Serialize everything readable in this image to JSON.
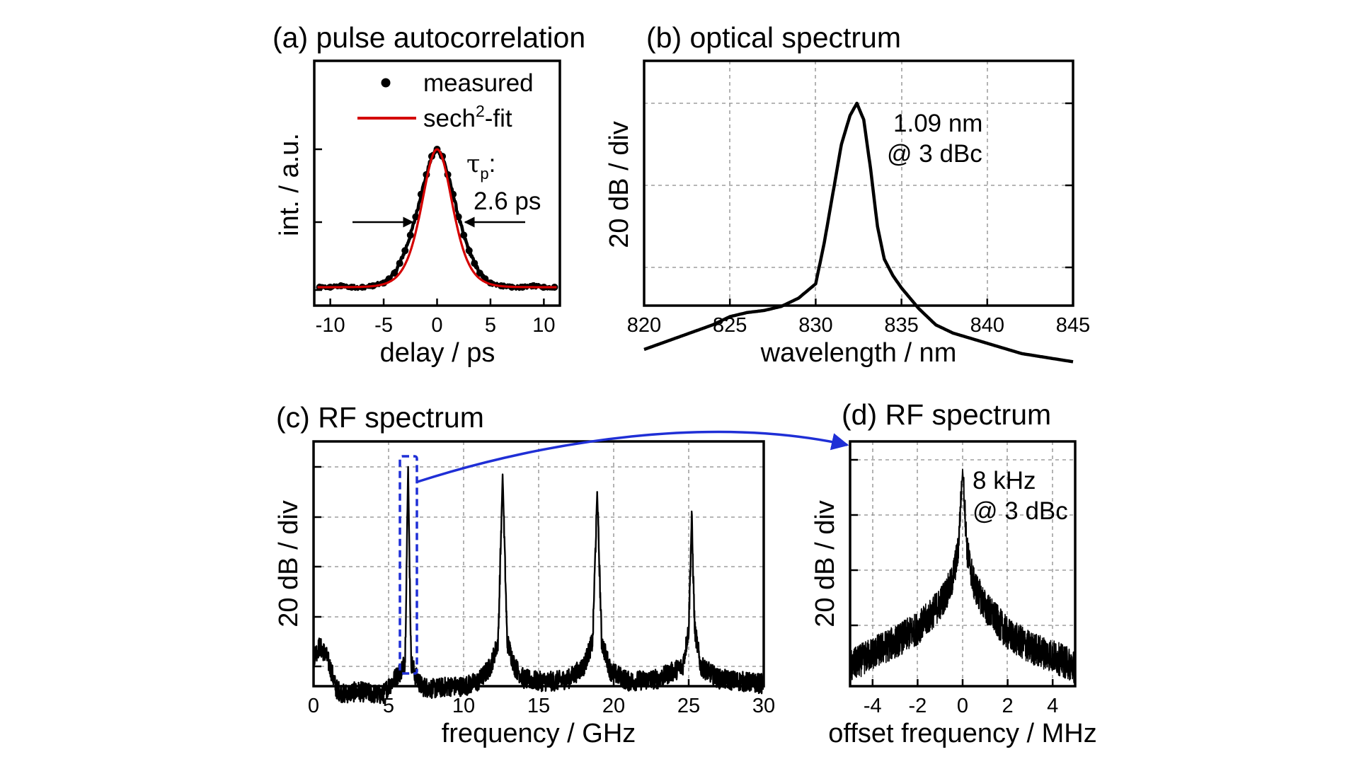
{
  "chart_data": [
    {
      "id": "a",
      "type": "scatter",
      "title": "(a) pulse autocorrelation",
      "xlabel": "delay / ps",
      "ylabel": "int. / a.u.",
      "xlim": [
        -11.5,
        11.5
      ],
      "xticks": [
        "-10",
        "-5",
        "0",
        "5",
        "10"
      ],
      "grid": false,
      "legend_position": "top-right",
      "series": [
        {
          "name": "measured",
          "kind": "points",
          "color": "#000000",
          "x": [
            -11,
            -10,
            -9,
            -8,
            -7,
            -6,
            -5,
            -4.5,
            -4,
            -3.5,
            -3,
            -2.5,
            -2,
            -1.5,
            -1,
            -0.5,
            0,
            0.5,
            1,
            1.5,
            2,
            2.5,
            3,
            3.5,
            4,
            4.5,
            5,
            6,
            7,
            8,
            9,
            10,
            11
          ],
          "y": [
            0.02,
            0.02,
            0.03,
            0.02,
            0.02,
            0.03,
            0.05,
            0.08,
            0.12,
            0.19,
            0.28,
            0.39,
            0.52,
            0.68,
            0.82,
            0.95,
            1.0,
            0.95,
            0.82,
            0.68,
            0.52,
            0.39,
            0.28,
            0.19,
            0.12,
            0.08,
            0.05,
            0.03,
            0.02,
            0.02,
            0.03,
            0.02,
            0.02
          ]
        },
        {
          "name": "sech²-fit",
          "kind": "line",
          "color": "#d40000",
          "tau_ps": 2.6
        }
      ],
      "legend": {
        "measured": "measured",
        "fit_base": "sech",
        "fit_sup": "2",
        "fit_rest": "-fit"
      },
      "annotation": {
        "tau": "τ",
        "sub": "p",
        "colon": ":",
        "value": "2.6 ps"
      }
    },
    {
      "id": "b",
      "type": "line",
      "title": "(b) optical spectrum",
      "xlabel": "wavelength / nm",
      "ylabel": "20 dB / div",
      "xlim": [
        820,
        845
      ],
      "xticks": [
        "820",
        "825",
        "830",
        "835",
        "840",
        "845"
      ],
      "grid": true,
      "series": [
        {
          "color": "#000000",
          "x": [
            820,
            822,
            824,
            825,
            826,
            827,
            828,
            829,
            830,
            830.5,
            831,
            831.5,
            832,
            832.4,
            832.8,
            833.2,
            833.6,
            834,
            834.5,
            835,
            836,
            837,
            838,
            840,
            842,
            845
          ],
          "y": [
            -60,
            -57,
            -54,
            -52,
            -51,
            -50.5,
            -49.5,
            -47.5,
            -44,
            -34,
            -22,
            -10,
            -3,
            0,
            -4,
            -16,
            -30,
            -38,
            -42,
            -45,
            -50,
            -54,
            -56,
            -58.5,
            -61,
            -63
          ]
        }
      ],
      "annotation": [
        "1.09 nm",
        "@ 3 dBc"
      ]
    },
    {
      "id": "c",
      "type": "line",
      "title": "(c) RF spectrum",
      "xlabel": "frequency / GHz",
      "ylabel": "20 dB / div",
      "xlim": [
        0,
        30
      ],
      "xticks": [
        "0",
        "5",
        "10",
        "15",
        "20",
        "25",
        "30"
      ],
      "grid": true,
      "peaks_GHz": [
        6.3,
        12.6,
        18.9,
        25.2
      ],
      "series": [
        {
          "color": "#000000",
          "x": [
            0,
            0.4,
            0.8,
            1.2,
            1.5,
            2,
            3,
            4,
            4.6,
            5,
            5.4,
            5.8,
            6.1,
            6.3,
            6.5,
            6.8,
            7.2,
            8,
            9,
            10,
            11,
            11.8,
            12.3,
            12.6,
            12.9,
            13.4,
            14,
            15,
            16,
            17,
            18,
            18.6,
            18.9,
            19.2,
            19.8,
            21,
            23,
            24.6,
            25,
            25.2,
            25.4,
            25.8,
            27,
            28.5,
            30
          ],
          "y": [
            -76,
            -72,
            -75,
            -82,
            -89,
            -91,
            -90,
            -91,
            -91.5,
            -88,
            -85,
            -82,
            -78,
            0,
            -78,
            -84,
            -88,
            -89,
            -88,
            -88,
            -86,
            -80,
            -70,
            -3,
            -70,
            -80,
            -85,
            -86,
            -86,
            -85,
            -80,
            -70,
            -10,
            -70,
            -82,
            -86,
            -85,
            -80,
            -65,
            -20,
            -65,
            -80,
            -85,
            -86,
            -87
          ]
        }
      ],
      "highlight_color": "#1f2fd6"
    },
    {
      "id": "d",
      "type": "line",
      "title": "(d) RF spectrum",
      "xlabel": "offset frequency / MHz",
      "ylabel": "20 dB / div",
      "xlim": [
        -5,
        5
      ],
      "xticks": [
        "-4",
        "-2",
        "0",
        "2",
        "4"
      ],
      "grid": true,
      "series": [
        {
          "color": "#000000",
          "x": [
            -5,
            -4,
            -3,
            -2,
            -1.5,
            -1,
            -0.5,
            -0.2,
            0,
            0.2,
            0.5,
            1,
            1.5,
            2,
            3,
            4,
            5
          ],
          "y": [
            -72,
            -67,
            -63,
            -58,
            -54,
            -49,
            -42,
            -30,
            0,
            -30,
            -42,
            -50,
            -55,
            -60,
            -65,
            -68,
            -72
          ]
        }
      ],
      "annotation": [
        "8 kHz",
        "@ 3 dBc"
      ]
    }
  ]
}
